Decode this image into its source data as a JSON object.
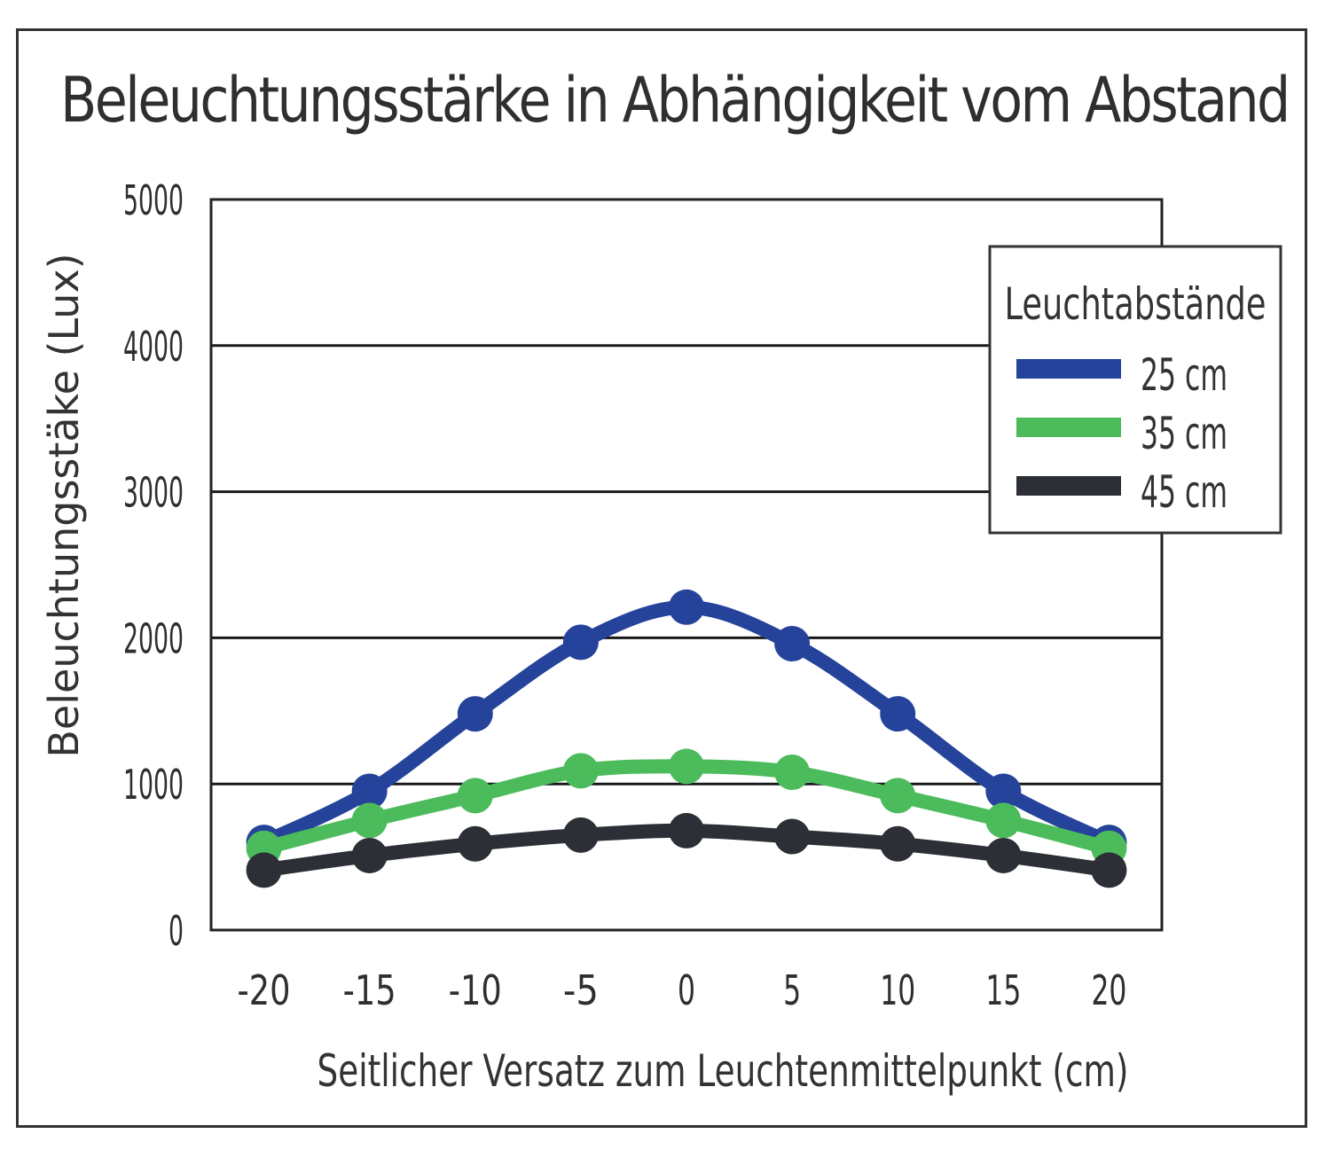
{
  "chart_data": {
    "type": "line",
    "title": "Beleuchtungsstärke in Abhängigkeit vom Abstand",
    "xlabel": "Seitlicher Versatz zum Leuchtenmittelpunkt (cm)",
    "ylabel": "Beleuchtungsstäke (Lux)",
    "x": [
      -20,
      -15,
      -10,
      -5,
      0,
      5,
      10,
      15,
      20
    ],
    "x_tick_labels": [
      "-20",
      "-15",
      "-10",
      "-5",
      "0",
      "5",
      "10",
      "15",
      "20"
    ],
    "y_ticks": [
      0,
      1000,
      2000,
      3000,
      4000,
      5000
    ],
    "y_tick_labels": [
      "0",
      "1000",
      "2000",
      "3000",
      "4000",
      "5000"
    ],
    "xlim": [
      -22.5,
      22.5
    ],
    "ylim": [
      0,
      5000
    ],
    "grid": "horizontal",
    "legend": {
      "title": "Leuchtabstände",
      "placement": "top-right"
    },
    "series": [
      {
        "name": "25 cm",
        "color": "#25439a",
        "values": [
          600,
          950,
          1480,
          1970,
          2210,
          1960,
          1480,
          950,
          600
        ]
      },
      {
        "name": "35 cm",
        "color": "#4cbb5c",
        "values": [
          560,
          750,
          920,
          1090,
          1120,
          1080,
          920,
          750,
          560
        ]
      },
      {
        "name": "45 cm",
        "color": "#2c2f36",
        "values": [
          410,
          510,
          590,
          650,
          680,
          640,
          590,
          510,
          410
        ]
      }
    ]
  }
}
